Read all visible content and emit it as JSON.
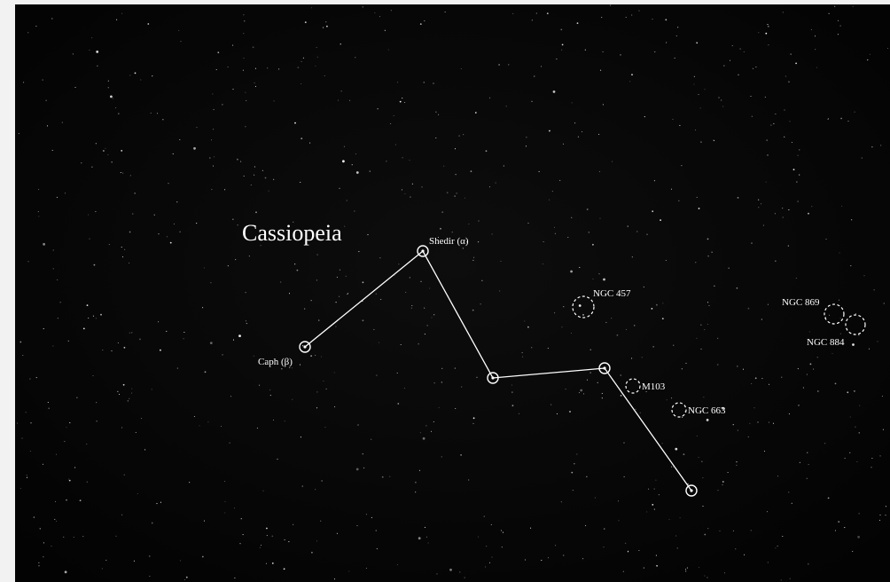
{
  "constellation": "Cassiopeia",
  "stars": [
    {
      "label": "Shedir (α)"
    },
    {
      "label": "Caph (β)"
    }
  ],
  "clusters": [
    {
      "label": "NGC 457"
    },
    {
      "label": "M103"
    },
    {
      "label": "NGC 663"
    },
    {
      "label": "NGC 869"
    },
    {
      "label": "NGC 884"
    }
  ]
}
